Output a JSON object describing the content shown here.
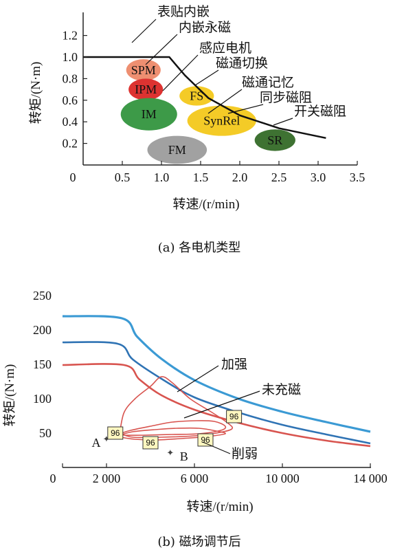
{
  "chart_data": [
    {
      "type": "scatter",
      "caption": "(a) 各电机类型",
      "xlabel": "转速/(r/min)",
      "ylabel": "转矩/(N·m)",
      "xlim": [
        0,
        3.5
      ],
      "ylim": [
        0,
        1.2
      ],
      "xticks": [
        "0",
        "0.5",
        "1.0",
        "1.5",
        "2.0",
        "2.5",
        "3.0",
        "3.5"
      ],
      "yticks": [
        "0.2",
        "0.4",
        "0.6",
        "0.8",
        "1.0",
        "1.2"
      ],
      "envelope": [
        [
          0,
          1.0
        ],
        [
          1.1,
          1.0
        ],
        [
          1.3,
          0.83
        ],
        [
          1.6,
          0.62
        ],
        [
          2.0,
          0.46
        ],
        [
          2.5,
          0.34
        ],
        [
          3.1,
          0.25
        ]
      ],
      "regions": [
        {
          "name": "SPM",
          "cx": 0.77,
          "cy": 0.88,
          "rx": 0.22,
          "ry": 0.1,
          "color": "#ee8f71"
        },
        {
          "name": "IPM",
          "cx": 0.8,
          "cy": 0.7,
          "rx": 0.22,
          "ry": 0.1,
          "color": "#dd3331"
        },
        {
          "name": "FS",
          "cx": 1.45,
          "cy": 0.64,
          "rx": 0.22,
          "ry": 0.09,
          "color": "#f4cb27"
        },
        {
          "name": "IM",
          "cx": 0.84,
          "cy": 0.47,
          "rx": 0.36,
          "ry": 0.15,
          "color": "#3d9a48"
        },
        {
          "name": "SynRel",
          "cx": 1.77,
          "cy": 0.41,
          "rx": 0.44,
          "ry": 0.14,
          "color": "#f4cb27"
        },
        {
          "name": "SR",
          "cx": 2.45,
          "cy": 0.23,
          "rx": 0.26,
          "ry": 0.1,
          "color": "#3e7232"
        },
        {
          "name": "FM",
          "cx": 1.2,
          "cy": 0.14,
          "rx": 0.38,
          "ry": 0.13,
          "color": "#a1a1a1"
        }
      ],
      "annotations": [
        {
          "text": "表贴内嵌",
          "target": "SPM"
        },
        {
          "text": "内嵌永磁",
          "target": "IPM"
        },
        {
          "text": "感应电机",
          "target": "IM"
        },
        {
          "text": "磁通切换",
          "target": "FS"
        },
        {
          "text": "磁通记忆",
          "target": "SynRel"
        },
        {
          "text": "同步磁阻",
          "target": "SynRel"
        },
        {
          "text": "开关磁阻",
          "target": "SR"
        }
      ]
    },
    {
      "type": "line",
      "caption": "(b) 磁场调节后",
      "xlabel": "转速/(r/min)",
      "ylabel": "转矩/(N·m)",
      "xlim": [
        0,
        14000
      ],
      "ylim": [
        0,
        250
      ],
      "xticks": [
        "0",
        "2 000",
        "6 000",
        "10 000",
        "14 000"
      ],
      "yticks": [
        "50",
        "100",
        "150",
        "200",
        "250"
      ],
      "series": [
        {
          "color": "#3b9ad4",
          "points": [
            [
              0,
              220
            ],
            [
              2700,
              217
            ],
            [
              3400,
              190
            ],
            [
              4500,
              158
            ],
            [
              6000,
              127
            ],
            [
              8000,
              100
            ],
            [
              10000,
              81
            ],
            [
              12000,
              66
            ],
            [
              14000,
              52
            ]
          ]
        },
        {
          "color": "#2f73b4",
          "points": [
            [
              0,
              182
            ],
            [
              2500,
              180
            ],
            [
              3200,
              157
            ],
            [
              4500,
              129
            ],
            [
              6000,
              102
            ],
            [
              8000,
              80
            ],
            [
              10000,
              62
            ],
            [
              12000,
              48
            ],
            [
              14000,
              35
            ]
          ]
        },
        {
          "color": "#d8544f",
          "points": [
            [
              0,
              149
            ],
            [
              2800,
              149
            ],
            [
              3500,
              128
            ],
            [
              4500,
              105
            ],
            [
              6000,
              84
            ],
            [
              8000,
              65
            ],
            [
              10000,
              50
            ],
            [
              12000,
              39
            ],
            [
              14000,
              31
            ]
          ]
        }
      ],
      "loops": [
        {
          "label": "加强",
          "points": [
            [
              2600,
              50
            ],
            [
              2800,
              80
            ],
            [
              3300,
              100
            ],
            [
              4000,
              118
            ],
            [
              4500,
              132
            ],
            [
              5000,
              123
            ],
            [
              5800,
              100
            ],
            [
              6700,
              82
            ],
            [
              7500,
              65
            ],
            [
              7700,
              56
            ],
            [
              7000,
              50
            ],
            [
              6000,
              46
            ],
            [
              4500,
              44
            ],
            [
              3200,
              44
            ],
            [
              2600,
              50
            ]
          ]
        },
        {
          "label": "未充磁",
          "points": [
            [
              2600,
              49
            ],
            [
              3100,
              54
            ],
            [
              4000,
              60
            ],
            [
              5000,
              66
            ],
            [
              6100,
              68
            ],
            [
              6900,
              67
            ],
            [
              7400,
              60
            ],
            [
              7200,
              54
            ],
            [
              6200,
              49
            ],
            [
              5000,
              48
            ],
            [
              3800,
              47
            ],
            [
              2800,
              47
            ],
            [
              2600,
              49
            ]
          ]
        },
        {
          "label": "削弱",
          "points": [
            [
              2600,
              47
            ],
            [
              3200,
              52
            ],
            [
              4200,
              55
            ],
            [
              5200,
              57
            ],
            [
              6200,
              57
            ],
            [
              7000,
              53
            ],
            [
              7400,
              49
            ],
            [
              6600,
              45
            ],
            [
              5400,
              42
            ],
            [
              4300,
              40
            ],
            [
              3300,
              41
            ],
            [
              2700,
              44
            ],
            [
              2600,
              47
            ]
          ]
        }
      ],
      "points": [
        {
          "label": "A",
          "x": 2000,
          "y": 42
        },
        {
          "label": "B",
          "x": 4900,
          "y": 22
        }
      ],
      "badges": [
        {
          "text": "96",
          "x": 2400,
          "y": 50
        },
        {
          "text": "96",
          "x": 4000,
          "y": 36
        },
        {
          "text": "96",
          "x": 6500,
          "y": 40
        },
        {
          "text": "96",
          "x": 7800,
          "y": 74
        }
      ],
      "annotations": [
        {
          "text": "加强"
        },
        {
          "text": "未充磁"
        },
        {
          "text": "削弱"
        }
      ]
    }
  ]
}
